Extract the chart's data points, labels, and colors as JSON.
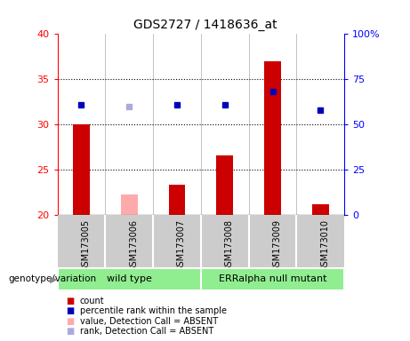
{
  "title": "GDS2727 / 1418636_at",
  "samples": [
    "GSM173005",
    "GSM173006",
    "GSM173007",
    "GSM173008",
    "GSM173009",
    "GSM173010"
  ],
  "bar_values": [
    30.0,
    null,
    23.3,
    26.6,
    37.0,
    21.2
  ],
  "bar_absent": [
    null,
    22.3,
    null,
    null,
    null,
    null
  ],
  "bar_colors_present": "#cc0000",
  "bar_colors_absent": "#ffaaaa",
  "rank_values": [
    32.2,
    null,
    32.2,
    32.2,
    33.7,
    31.6
  ],
  "rank_absent": [
    null,
    32.0,
    null,
    null,
    null,
    null
  ],
  "rank_colors_present": "#0000bb",
  "rank_colors_absent": "#aaaadd",
  "ylim_left": [
    20,
    40
  ],
  "ylim_right": [
    0,
    100
  ],
  "yticks_left": [
    20,
    25,
    30,
    35,
    40
  ],
  "yticks_right": [
    0,
    25,
    50,
    75,
    100
  ],
  "ytick_labels_right": [
    "0",
    "25",
    "50",
    "75",
    "100%"
  ],
  "baseline": 20,
  "grid_lines": [
    25,
    30,
    35
  ],
  "group_label": "genotype/variation",
  "group_wt": "wild type",
  "group_err": "ERRalpha null mutant",
  "group_color": "#90EE90",
  "legend": [
    {
      "color": "#cc0000",
      "label": "count"
    },
    {
      "color": "#0000bb",
      "label": "percentile rank within the sample"
    },
    {
      "color": "#ffaaaa",
      "label": "value, Detection Call = ABSENT"
    },
    {
      "color": "#aaaadd",
      "label": "rank, Detection Call = ABSENT"
    }
  ],
  "sample_col_bg": "#cccccc",
  "plot_bg": "#ffffff",
  "bar_width": 0.35
}
